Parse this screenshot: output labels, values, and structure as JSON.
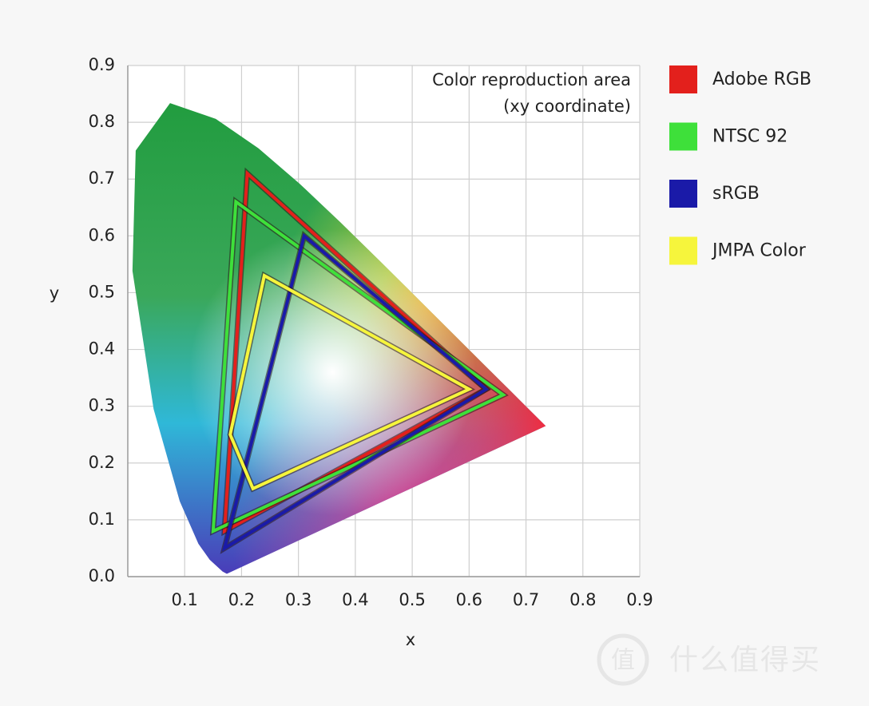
{
  "chart_data": {
    "type": "line",
    "annotations": [
      "Color reproduction area",
      "(xy coordinate)"
    ],
    "x_label": "x",
    "y_label": "y",
    "xlim": [
      0,
      0.9
    ],
    "ylim": [
      0,
      0.9
    ],
    "xticks": [
      0.1,
      0.2,
      0.3,
      0.4,
      0.5,
      0.6,
      0.7,
      0.8,
      0.9
    ],
    "yticks": [
      {
        "value": 0,
        "label": "0.0"
      },
      0.1,
      0.2,
      0.3,
      0.4,
      0.5,
      0.6,
      0.7,
      0.8,
      0.9
    ],
    "grid": true,
    "legend": "right",
    "area": {
      "x": [
        0.1741,
        0.1666,
        0.144,
        0.1241,
        0.0913,
        0.0454,
        0.0082,
        0.0139,
        0.0743,
        0.1547,
        0.2296,
        0.3016,
        0.3731,
        0.4441,
        0.5125,
        0.5752,
        0.627,
        0.6658,
        0.6915,
        0.7347
      ],
      "y": [
        0.005,
        0.0089,
        0.0297,
        0.0578,
        0.1327,
        0.295,
        0.5384,
        0.7502,
        0.8338,
        0.8059,
        0.7543,
        0.6923,
        0.6245,
        0.5547,
        0.4866,
        0.4242,
        0.3725,
        0.334,
        0.3083,
        0.2653
      ]
    },
    "series": [
      {
        "name": "Adobe RGB",
        "color": "#e3201c",
        "x": [
          0.21,
          0.63,
          0.17
        ],
        "values": [
          0.71,
          0.33,
          0.08
        ]
      },
      {
        "name": "NTSC 92",
        "color": "#3ee03a",
        "x": [
          0.19,
          0.66,
          0.15
        ],
        "values": [
          0.66,
          0.32,
          0.08
        ]
      },
      {
        "name": "sRGB",
        "color": "#1a1aa8",
        "x": [
          0.31,
          0.63,
          0.17
        ],
        "values": [
          0.6,
          0.33,
          0.05
        ]
      },
      {
        "name": "JMPA Color",
        "color": "#f6f53c",
        "x": [
          0.24,
          0.6,
          0.22,
          0.18
        ],
        "values": [
          0.53,
          0.33,
          0.155,
          0.25
        ]
      }
    ]
  },
  "watermark": "什么值得买"
}
